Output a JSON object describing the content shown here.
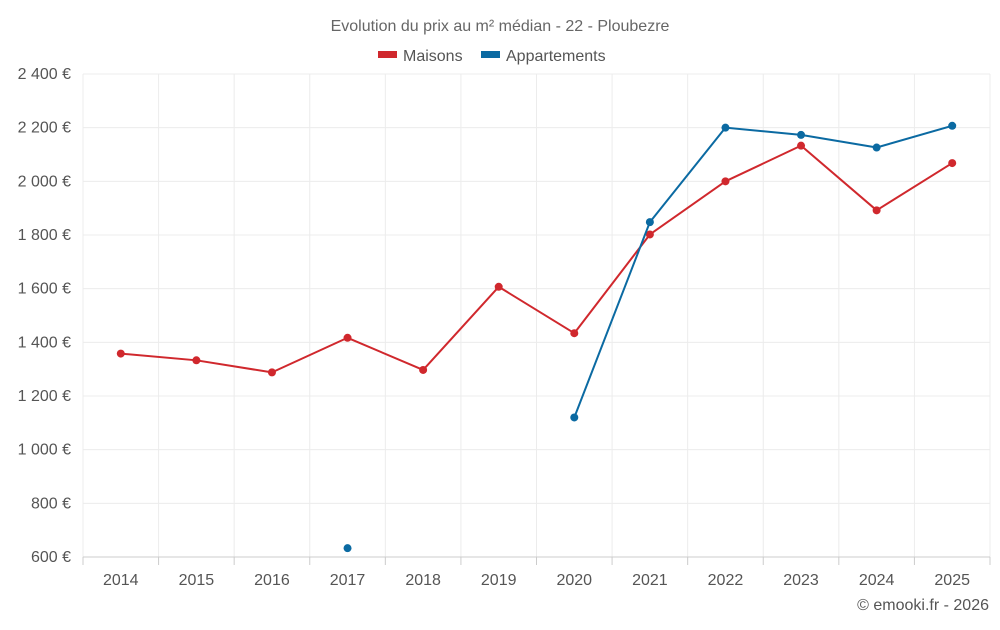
{
  "chart_data": {
    "type": "line",
    "title": "Evolution du prix au m² médian - 22 - Ploubezre",
    "xlabel": "",
    "ylabel": "",
    "categories": [
      "2014",
      "2015",
      "2016",
      "2017",
      "2018",
      "2019",
      "2020",
      "2021",
      "2022",
      "2023",
      "2024",
      "2025"
    ],
    "ylim": [
      600,
      2400
    ],
    "yticks": [
      600,
      800,
      1000,
      1200,
      1400,
      1600,
      1800,
      2000,
      2200,
      2400
    ],
    "ytick_labels": [
      "600 €",
      "800 €",
      "1 000 €",
      "1 200 €",
      "1 400 €",
      "1 600 €",
      "1 800 €",
      "2 000 €",
      "2 200 €",
      "2 400 €"
    ],
    "grid": true,
    "legend": "top-center",
    "series": [
      {
        "name": "Maisons",
        "color": "#d0282d",
        "values": [
          1358,
          1333,
          1288,
          1417,
          1297,
          1607,
          1434,
          1802,
          2000,
          2133,
          1892,
          2068
        ]
      },
      {
        "name": "Appartements",
        "color": "#0b6aa2",
        "values": [
          null,
          null,
          null,
          633,
          null,
          null,
          1120,
          1848,
          2200,
          2173,
          2126,
          2207
        ]
      }
    ]
  },
  "footer": {
    "credit": "© emooki.fr - 2026"
  }
}
